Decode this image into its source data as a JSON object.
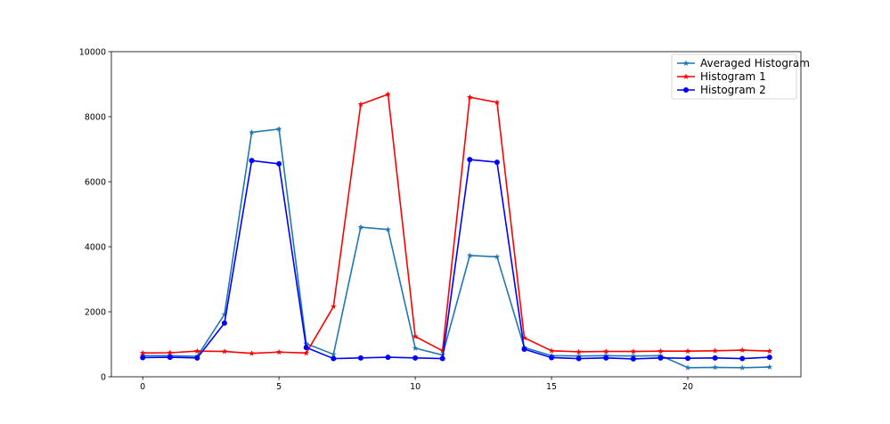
{
  "chart_data": {
    "type": "line",
    "title": "",
    "xlabel": "",
    "ylabel": "",
    "xlim": [
      -1.15,
      24.15
    ],
    "ylim": [
      0,
      10000
    ],
    "x_ticks": [
      0,
      5,
      10,
      15,
      20
    ],
    "y_ticks": [
      0,
      2000,
      4000,
      6000,
      8000,
      10000
    ],
    "grid": false,
    "legend_position": "top-right",
    "x": [
      0,
      1,
      2,
      3,
      4,
      5,
      6,
      7,
      8,
      9,
      10,
      11,
      12,
      13,
      14,
      15,
      16,
      17,
      18,
      19,
      20,
      21,
      22,
      23
    ],
    "series": [
      {
        "name": "Averaged Histogram",
        "color": "#1f77b4",
        "marker": "star",
        "values": [
          650,
          650,
          630,
          1920,
          7520,
          7620,
          1020,
          690,
          4600,
          4530,
          880,
          670,
          3730,
          3690,
          900,
          650,
          640,
          650,
          640,
          650,
          280,
          290,
          280,
          300
        ]
      },
      {
        "name": "Histogram 1",
        "color": "#ff0000",
        "marker": "star",
        "values": [
          730,
          740,
          790,
          780,
          720,
          760,
          730,
          2160,
          8380,
          8690,
          1240,
          800,
          8600,
          8440,
          1200,
          800,
          770,
          780,
          780,
          790,
          790,
          800,
          820,
          790
        ]
      },
      {
        "name": "Histogram 2",
        "color": "#0000ff",
        "marker": "circle",
        "values": [
          590,
          600,
          580,
          1650,
          6650,
          6550,
          900,
          560,
          580,
          600,
          580,
          560,
          6680,
          6600,
          850,
          590,
          560,
          580,
          550,
          580,
          570,
          580,
          560,
          600
        ]
      }
    ]
  }
}
